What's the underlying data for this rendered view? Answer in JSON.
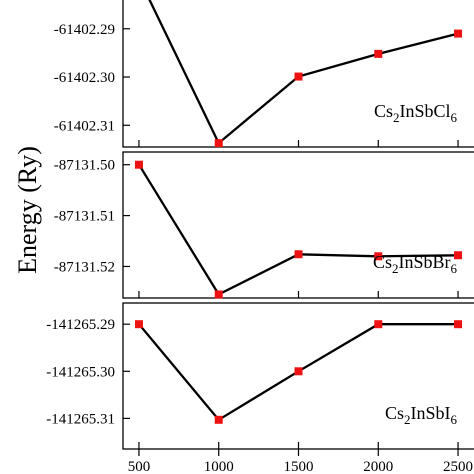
{
  "chart_data": {
    "type": "line",
    "ylabel": "Energy (Ry)",
    "x_ticks": [
      500,
      1000,
      1500,
      2000,
      2500
    ],
    "x_tick_labels": [
      "500",
      "1000",
      "1500",
      "2000",
      "2500"
    ],
    "xlim": [
      400,
      2600
    ],
    "marker_color": "#ee1111",
    "line_color": "#000000",
    "panels": [
      {
        "compound": {
          "pre": "Cs",
          "sub1": "2",
          "mid": "InSbCl",
          "sub2": "6"
        },
        "ylim": [
          -61402.3145,
          -61402.283
        ],
        "y_ticks": [
          -61402.29,
          -61402.3,
          -61402.31
        ],
        "y_tick_labels": [
          "-61402.29",
          "-61402.30",
          "-61402.31"
        ],
        "x": [
          500,
          1000,
          1500,
          2000,
          2500
        ],
        "y": [
          -61402.2795,
          -61402.3137,
          -61402.2999,
          -61402.2952,
          -61402.291
        ],
        "markers": [
          false,
          true,
          true,
          true,
          true
        ]
      },
      {
        "compound": {
          "pre": "Cs",
          "sub1": "2",
          "mid": "InSbBr",
          "sub2": "6"
        },
        "ylim": [
          -87131.5262,
          -87131.4975
        ],
        "y_ticks": [
          -87131.5,
          -87131.51,
          -87131.52
        ],
        "y_tick_labels": [
          "-87131.50",
          "-87131.51",
          "-87131.52"
        ],
        "x": [
          500,
          1000,
          1500,
          2000,
          2500
        ],
        "y": [
          -87131.5,
          -87131.5255,
          -87131.5176,
          -87131.518,
          -87131.5178
        ],
        "markers": [
          true,
          true,
          true,
          true,
          true
        ]
      },
      {
        "compound": {
          "pre": "Cs",
          "sub1": "2",
          "mid": "InSbI",
          "sub2": "6"
        },
        "ylim": [
          -141265.3165,
          -141265.2855
        ],
        "y_ticks": [
          -141265.29,
          -141265.3,
          -141265.31
        ],
        "y_tick_labels": [
          "-141265.29",
          "-141265.30",
          "-141265.31"
        ],
        "x": [
          500,
          1000,
          1500,
          2000,
          2500
        ],
        "y": [
          -141265.29,
          -141265.3103,
          -141265.3,
          -141265.29,
          -141265.29
        ],
        "markers": [
          true,
          true,
          true,
          true,
          true
        ]
      }
    ]
  }
}
